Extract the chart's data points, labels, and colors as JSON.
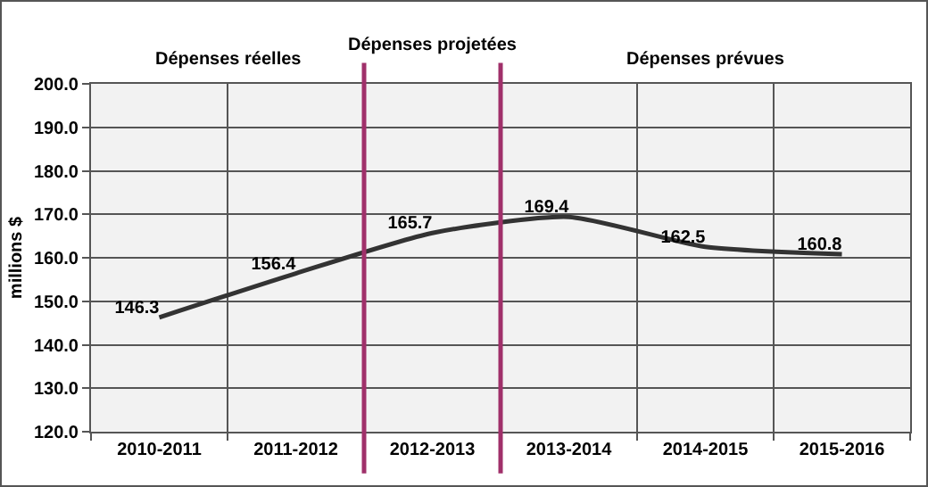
{
  "chart_data": {
    "type": "line",
    "ylabel": "millions $",
    "categories": [
      "2010-2011",
      "2011-2012",
      "2012-2013",
      "2013-2014",
      "2014-2015",
      "2015-2016"
    ],
    "series": [
      {
        "color": "#333333",
        "values": [
          146.3,
          156.4,
          165.7,
          169.4,
          162.5,
          160.8
        ]
      }
    ],
    "ylim": [
      120,
      200
    ],
    "yticks": [
      {
        "value": 120,
        "label": "120.0"
      },
      {
        "value": 130,
        "label": "130.0"
      },
      {
        "value": 140,
        "label": "140.0"
      },
      {
        "value": 150,
        "label": "150.0"
      },
      {
        "value": 160,
        "label": "160.0"
      },
      {
        "value": 170,
        "label": "170.0"
      },
      {
        "value": 180,
        "label": "180.0"
      },
      {
        "value": 190,
        "label": "190.0"
      },
      {
        "value": 200,
        "label": "200.0"
      }
    ],
    "annotations": [
      "Dépenses réelles",
      "Dépenses projetées",
      "Dépenses prévues"
    ],
    "data_labels": true,
    "grid": true,
    "marker": "none",
    "line_style": "solid",
    "legend": false
  }
}
